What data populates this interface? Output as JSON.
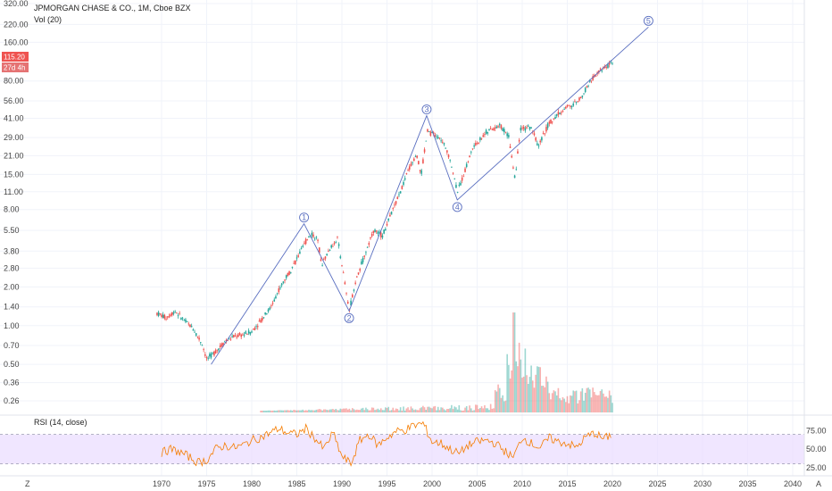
{
  "header": {
    "symbol_title": "JPMORGAN CHASE & CO., 1M, Cboe BZX",
    "volume_label": "Vol (20)",
    "rsi_label": "RSI (14, close)"
  },
  "price_badge": {
    "value": "115.20",
    "countdown": "27d 4h",
    "color": "#ef5350"
  },
  "bottom_bar": {
    "left_button": "Z",
    "right_button": "A"
  },
  "colors": {
    "up": "#26a69a",
    "down": "#ef5350",
    "wave": "#5a6fc0",
    "rsi_line": "#f57c00",
    "rsi_band": "#e9dcff"
  },
  "chart_data": {
    "type": "candlestick",
    "y_scale": "log",
    "y_ticks": [
      "320.00",
      "220.00",
      "160.00",
      "115.20",
      "80.00",
      "56.00",
      "41.00",
      "29.00",
      "21.00",
      "15.00",
      "11.00",
      "8.00",
      "5.50",
      "3.80",
      "2.80",
      "2.00",
      "1.40",
      "1.00",
      "0.70",
      "0.50",
      "0.36",
      "0.26"
    ],
    "x_ticks": [
      "1970",
      "1975",
      "1980",
      "1985",
      "1990",
      "1995",
      "2000",
      "2005",
      "2010",
      "2015",
      "2020",
      "2025",
      "2030",
      "2035",
      "2040"
    ],
    "price_path": [
      [
        1969.5,
        1.25
      ],
      [
        1970.5,
        1.15
      ],
      [
        1971.5,
        1.3
      ],
      [
        1972.5,
        1.1
      ],
      [
        1973.5,
        0.95
      ],
      [
        1974.5,
        0.72
      ],
      [
        1975,
        0.55
      ],
      [
        1975.7,
        0.6
      ],
      [
        1977,
        0.75
      ],
      [
        1978,
        0.82
      ],
      [
        1979,
        0.85
      ],
      [
        1980,
        0.9
      ],
      [
        1981,
        1.1
      ],
      [
        1982,
        1.35
      ],
      [
        1983,
        1.9
      ],
      [
        1984,
        2.5
      ],
      [
        1985,
        3.3
      ],
      [
        1986,
        4.5
      ],
      [
        1986.6,
        5.3
      ],
      [
        1987.3,
        4.6
      ],
      [
        1987.8,
        3.0
      ],
      [
        1988.5,
        3.8
      ],
      [
        1989.5,
        4.8
      ],
      [
        1990,
        3.0
      ],
      [
        1990.8,
        1.3
      ],
      [
        1991.5,
        2.2
      ],
      [
        1992.5,
        3.5
      ],
      [
        1993.5,
        5.5
      ],
      [
        1994.5,
        5.0
      ],
      [
        1995.5,
        7.5
      ],
      [
        1996.5,
        11
      ],
      [
        1997.5,
        17
      ],
      [
        1998.3,
        21
      ],
      [
        1998.8,
        15
      ],
      [
        1999.5,
        33
      ],
      [
        2000.3,
        30
      ],
      [
        2001,
        28
      ],
      [
        2002,
        20
      ],
      [
        2002.8,
        11
      ],
      [
        2003.5,
        15
      ],
      [
        2004.5,
        24
      ],
      [
        2006,
        32
      ],
      [
        2007.5,
        36
      ],
      [
        2008.5,
        30
      ],
      [
        2009.2,
        14
      ],
      [
        2009.8,
        34
      ],
      [
        2011,
        35
      ],
      [
        2011.8,
        25
      ],
      [
        2013,
        38
      ],
      [
        2014.5,
        48
      ],
      [
        2015.5,
        52
      ],
      [
        2016.5,
        58
      ],
      [
        2017.5,
        80
      ],
      [
        2018.5,
        95
      ],
      [
        2019.5,
        105
      ],
      [
        2020,
        113
      ]
    ],
    "rsi": {
      "ylim": [
        15,
        95
      ],
      "ticks": [
        "75.00",
        "50.00",
        "25.00"
      ],
      "bands": [
        70,
        30
      ],
      "values": [
        [
          1970,
          45
        ],
        [
          1971,
          50
        ],
        [
          1972,
          46
        ],
        [
          1973,
          40
        ],
        [
          1974,
          32
        ],
        [
          1975,
          35
        ],
        [
          1976,
          50
        ],
        [
          1977,
          55
        ],
        [
          1978,
          52
        ],
        [
          1979,
          55
        ],
        [
          1980,
          62
        ],
        [
          1981,
          66
        ],
        [
          1982,
          72
        ],
        [
          1983,
          78
        ],
        [
          1984,
          72
        ],
        [
          1985,
          70
        ],
        [
          1986,
          78
        ],
        [
          1987,
          65
        ],
        [
          1988,
          50
        ],
        [
          1989,
          72
        ],
        [
          1990,
          40
        ],
        [
          1991,
          30
        ],
        [
          1992,
          62
        ],
        [
          1993,
          70
        ],
        [
          1994,
          55
        ],
        [
          1995,
          66
        ],
        [
          1996,
          74
        ],
        [
          1997,
          76
        ],
        [
          1998,
          82
        ],
        [
          1999,
          85
        ],
        [
          2000,
          60
        ],
        [
          2001,
          58
        ],
        [
          2002,
          50
        ],
        [
          2003,
          44
        ],
        [
          2004,
          55
        ],
        [
          2005,
          60
        ],
        [
          2006,
          62
        ],
        [
          2007,
          58
        ],
        [
          2008,
          48
        ],
        [
          2009,
          38
        ],
        [
          2010,
          66
        ],
        [
          2011,
          58
        ],
        [
          2012,
          52
        ],
        [
          2013,
          65
        ],
        [
          2014,
          60
        ],
        [
          2015,
          58
        ],
        [
          2016,
          52
        ],
        [
          2017,
          66
        ],
        [
          2018,
          72
        ],
        [
          2019,
          64
        ],
        [
          2020,
          70
        ]
      ]
    },
    "wave_points": [
      {
        "label": "1",
        "x": 1985.8,
        "y": 6.2,
        "position": "above"
      },
      {
        "label": "2",
        "x": 1990.8,
        "y": 1.3,
        "position": "below"
      },
      {
        "label": "3",
        "x": 1999.4,
        "y": 43,
        "position": "above"
      },
      {
        "label": "4",
        "x": 2002.8,
        "y": 9.5,
        "position": "below"
      },
      {
        "label": "5",
        "x": 2024,
        "y": 210,
        "position": "above"
      }
    ],
    "wave_start": {
      "x": 1975.5,
      "y": 0.5
    }
  }
}
